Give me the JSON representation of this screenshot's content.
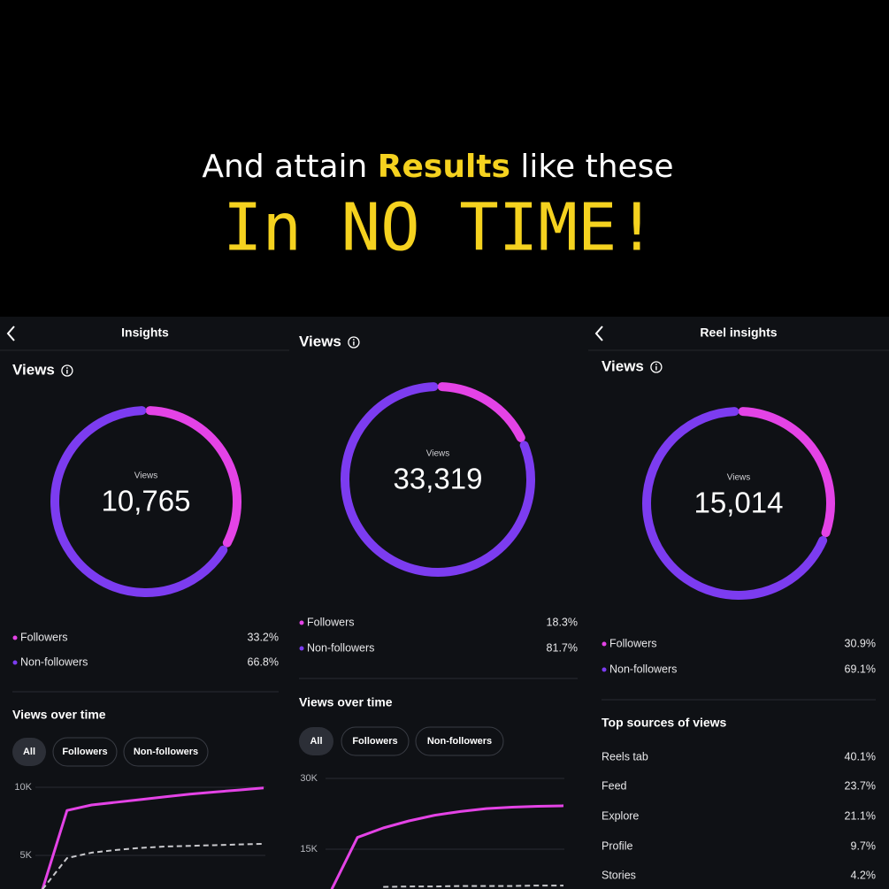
{
  "header": {
    "line1": [
      "And attain",
      "Results",
      "like these"
    ],
    "line2": "In NO TIME!"
  },
  "panels": [
    {
      "nav_title": "Insights",
      "section": "Views",
      "center_label": "Views",
      "total": "10,765",
      "legend": [
        {
          "name": "Followers",
          "value": 33.2,
          "label": "33.2%",
          "color": "#e443e6"
        },
        {
          "name": "Non-followers",
          "value": 66.8,
          "label": "66.8%",
          "color": "#7c3cf0"
        }
      ],
      "chart": {
        "type": "line",
        "title": "Views over time",
        "filters": [
          "All",
          "Followers",
          "Non-followers"
        ],
        "ylim": [
          0,
          10000
        ],
        "yticks": [
          {
            "value": 10000,
            "label": "10K"
          },
          {
            "value": 5000,
            "label": "5K"
          }
        ],
        "series": [
          {
            "color": "#e443e6",
            "dashed": false,
            "values": [
              2500,
              8300,
              8700,
              8900,
              9100,
              9300,
              9500,
              9650,
              9800,
              9950
            ]
          },
          {
            "color": "#c8c8cc",
            "dashed": true,
            "values": [
              2500,
              4800,
              5200,
              5400,
              5550,
              5650,
              5700,
              5750,
              5800,
              5850
            ]
          }
        ]
      }
    },
    {
      "section": "Views",
      "center_label": "Views",
      "total": "33,319",
      "legend": [
        {
          "name": "Followers",
          "value": 18.3,
          "label": "18.3%",
          "color": "#e443e6"
        },
        {
          "name": "Non-followers",
          "value": 81.7,
          "label": "81.7%",
          "color": "#7c3cf0"
        }
      ],
      "chart": {
        "type": "line",
        "title": "Views over time",
        "filters": [
          "All",
          "Followers",
          "Non-followers"
        ],
        "ylim": [
          0,
          30000
        ],
        "yticks": [
          {
            "value": 30000,
            "label": "30K"
          },
          {
            "value": 15000,
            "label": "15K"
          }
        ],
        "series": [
          {
            "color": "#e443e6",
            "dashed": false,
            "values": [
              6500,
              17500,
              19500,
              21000,
              22200,
              23000,
              23600,
              23900,
              24100,
              24200
            ]
          },
          {
            "color": "#c8c8cc",
            "dashed": true,
            "values": [
              null,
              null,
              7000,
              7100,
              7100,
              7200,
              7200,
              7200,
              7300,
              7300
            ]
          }
        ]
      }
    },
    {
      "nav_title": "Reel insights",
      "section": "Views",
      "center_label": "Views",
      "total": "15,014",
      "legend": [
        {
          "name": "Followers",
          "value": 30.9,
          "label": "30.9%",
          "color": "#e443e6"
        },
        {
          "name": "Non-followers",
          "value": 69.1,
          "label": "69.1%",
          "color": "#7c3cf0"
        }
      ],
      "sources": {
        "title": "Top sources of views",
        "rows": [
          {
            "name": "Reels tab",
            "value": 40.1,
            "label": "40.1%"
          },
          {
            "name": "Feed",
            "value": 23.7,
            "label": "23.7%"
          },
          {
            "name": "Explore",
            "value": 21.1,
            "label": "21.1%"
          },
          {
            "name": "Profile",
            "value": 9.7,
            "label": "9.7%"
          },
          {
            "name": "Stories",
            "value": 4.2,
            "label": "4.2%"
          }
        ]
      }
    }
  ]
}
